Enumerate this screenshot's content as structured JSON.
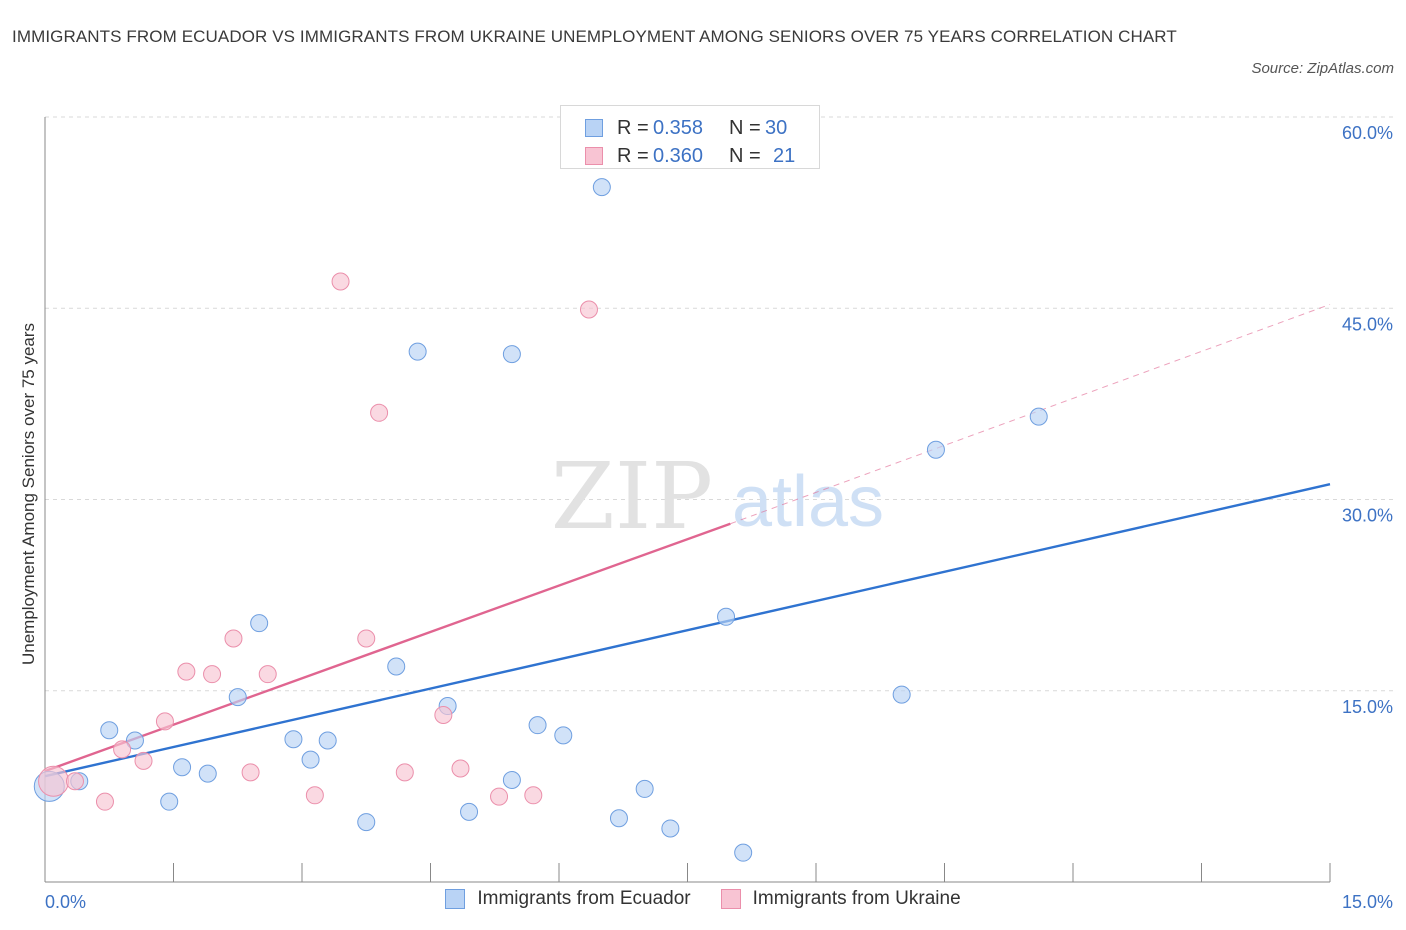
{
  "header": {
    "title": "IMMIGRANTS FROM ECUADOR VS IMMIGRANTS FROM UKRAINE UNEMPLOYMENT AMONG SENIORS OVER 75 YEARS CORRELATION CHART",
    "source": "Source: ZipAtlas.com"
  },
  "colors": {
    "ecuador_fill": "#b9d3f5",
    "ecuador_stroke": "#6f9fe0",
    "ecuador_line": "#2f73d0",
    "ukraine_fill": "#f8c4d3",
    "ukraine_stroke": "#eb8fab",
    "ukraine_line": "#e06590",
    "tick_label": "#3d72c4",
    "grid": "#d9d9d9"
  },
  "legend_top": {
    "r_label": "R =",
    "n_label": "N =",
    "ecuador": {
      "r": "0.358",
      "n": "30"
    },
    "ukraine": {
      "r": "0.360",
      "n": "21"
    }
  },
  "watermark": {
    "zip": "ZIP",
    "atlas": "atlas"
  },
  "chart_data": {
    "type": "scatter",
    "title": "Immigrants from Ecuador vs Immigrants from Ukraine Unemployment Among Seniors over 75 years Correlation Chart",
    "xlabel": "",
    "ylabel": "Unemployment Among Seniors over 75 years",
    "xlim": [
      0,
      15
    ],
    "ylim": [
      0,
      60
    ],
    "x_tick_labels": [
      "0.0%",
      "15.0%"
    ],
    "y_ticks": [
      15,
      30,
      45,
      60
    ],
    "y_tick_labels": [
      "15.0%",
      "30.0%",
      "45.0%",
      "60.0%"
    ],
    "grid": true,
    "series": [
      {
        "name": "Immigrants from Ecuador",
        "points": [
          [
            0.05,
            7.5
          ],
          [
            0.4,
            7.9
          ],
          [
            0.75,
            11.9
          ],
          [
            1.05,
            11.1
          ],
          [
            1.45,
            6.3
          ],
          [
            1.6,
            9.0
          ],
          [
            1.9,
            8.5
          ],
          [
            2.25,
            14.5
          ],
          [
            2.5,
            20.3
          ],
          [
            2.9,
            11.2
          ],
          [
            3.1,
            9.6
          ],
          [
            3.3,
            11.1
          ],
          [
            3.75,
            4.7
          ],
          [
            4.1,
            16.9
          ],
          [
            4.35,
            41.6
          ],
          [
            4.7,
            13.8
          ],
          [
            4.95,
            5.5
          ],
          [
            5.45,
            8.0
          ],
          [
            5.45,
            41.4
          ],
          [
            5.75,
            12.3
          ],
          [
            6.05,
            11.5
          ],
          [
            6.5,
            54.5
          ],
          [
            6.7,
            5.0
          ],
          [
            7.0,
            7.3
          ],
          [
            7.3,
            4.2
          ],
          [
            7.95,
            20.8
          ],
          [
            8.15,
            2.3
          ],
          [
            10.0,
            14.7
          ],
          [
            10.4,
            33.9
          ],
          [
            11.6,
            36.5
          ]
        ]
      },
      {
        "name": "Immigrants from Ukraine",
        "points": [
          [
            0.1,
            7.9
          ],
          [
            0.35,
            7.9
          ],
          [
            0.7,
            6.3
          ],
          [
            0.9,
            10.4
          ],
          [
            1.15,
            9.5
          ],
          [
            1.4,
            12.6
          ],
          [
            1.65,
            16.5
          ],
          [
            1.95,
            16.3
          ],
          [
            2.2,
            19.1
          ],
          [
            2.4,
            8.6
          ],
          [
            2.6,
            16.3
          ],
          [
            3.15,
            6.8
          ],
          [
            3.45,
            47.1
          ],
          [
            3.75,
            19.1
          ],
          [
            3.9,
            36.8
          ],
          [
            4.2,
            8.6
          ],
          [
            4.65,
            13.1
          ],
          [
            4.85,
            8.9
          ],
          [
            5.3,
            6.7
          ],
          [
            5.7,
            6.8
          ],
          [
            6.35,
            44.9
          ]
        ]
      }
    ],
    "trendlines": [
      {
        "series": "Immigrants from Ecuador",
        "x0": 0,
        "y0": 8.3,
        "x1": 15,
        "y1": 31.2
      },
      {
        "series": "Immigrants from Ukraine",
        "x0": 0,
        "y0": 8.7,
        "x1": 8.0,
        "y1": 28.1,
        "dashed_to_x": 15,
        "dashed_to_y": 45.3
      }
    ]
  },
  "bottom_legend": {
    "ecuador_label": "Immigrants from Ecuador",
    "ukraine_label": "Immigrants from Ukraine"
  }
}
